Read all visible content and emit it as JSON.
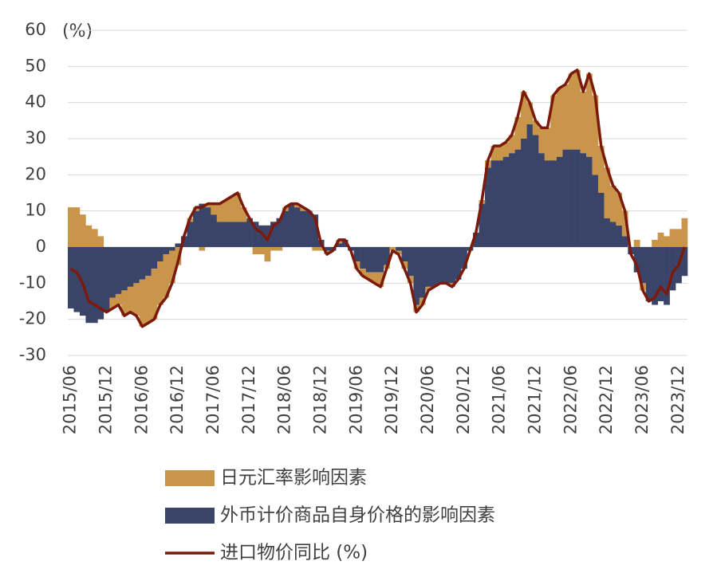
{
  "chart_data": {
    "type": "combo",
    "unit_label": "(%)",
    "categories": [
      "2015/06",
      null,
      null,
      null,
      null,
      null,
      "2015/12",
      null,
      null,
      null,
      null,
      null,
      "2016/06",
      null,
      null,
      null,
      null,
      null,
      "2016/12",
      null,
      null,
      null,
      null,
      null,
      "2017/06",
      null,
      null,
      null,
      null,
      null,
      "2017/12",
      null,
      null,
      null,
      null,
      null,
      "2018/06",
      null,
      null,
      null,
      null,
      null,
      "2018/12",
      null,
      null,
      null,
      null,
      null,
      "2019/06",
      null,
      null,
      null,
      null,
      null,
      "2019/12",
      null,
      null,
      null,
      null,
      null,
      "2020/06",
      null,
      null,
      null,
      null,
      null,
      "2020/12",
      null,
      null,
      null,
      null,
      null,
      "2021/06",
      null,
      null,
      null,
      null,
      null,
      "2021/12",
      null,
      null,
      null,
      null,
      null,
      "2022/06",
      null,
      null,
      null,
      null,
      null,
      "2022/12",
      null,
      null,
      null,
      null,
      null,
      "2023/06",
      null,
      null,
      null,
      null,
      null,
      "2023/12",
      null
    ],
    "series": [
      {
        "name": "日元汇率影响因素",
        "type": "bar",
        "color": "#c8954a",
        "values": [
          11,
          11,
          9,
          6,
          5,
          3,
          0,
          -3,
          -3,
          -7,
          -7,
          -9,
          -13,
          -13,
          -14,
          -12,
          -12,
          -9,
          -5,
          0,
          1,
          1,
          -1,
          1,
          3,
          5,
          6,
          7,
          8,
          4,
          0,
          -2,
          -2,
          -4,
          -1,
          -1,
          1,
          0,
          1,
          1,
          0,
          -1,
          -1,
          -1,
          0,
          1,
          0,
          0,
          -2,
          -2,
          -2,
          -3,
          -4,
          -1,
          -1,
          -1,
          -2,
          -2,
          -2,
          -2,
          -1,
          0,
          0,
          0,
          -1,
          0,
          0,
          0,
          0,
          1,
          2,
          4,
          4,
          4,
          5,
          9,
          13,
          6,
          4,
          7,
          9,
          18,
          19,
          18,
          21,
          22,
          17,
          23,
          22,
          13,
          14,
          10,
          9,
          7,
          0,
          2,
          -2,
          0,
          2,
          4,
          3,
          5,
          5,
          8
        ]
      },
      {
        "name": "外币计价商品自身价格的影响因素",
        "type": "bar",
        "color": "#3a4468",
        "values": [
          -17,
          -18,
          -19,
          -21,
          -21,
          -20,
          -18,
          -14,
          -13,
          -12,
          -11,
          -10,
          -9,
          -8,
          -6,
          -4,
          -2,
          -1,
          1,
          3,
          7,
          10,
          12,
          11,
          9,
          7,
          7,
          7,
          7,
          7,
          8,
          7,
          6,
          6,
          7,
          8,
          10,
          12,
          11,
          10,
          10,
          9,
          2,
          -1,
          -1,
          1,
          2,
          -1,
          -4,
          -6,
          -7,
          -7,
          -7,
          -5,
          0,
          -1,
          -4,
          -8,
          -16,
          -14,
          -11,
          -11,
          -10,
          -10,
          -10,
          -9,
          -6,
          -1,
          4,
          12,
          22,
          24,
          24,
          25,
          26,
          27,
          30,
          34,
          31,
          26,
          24,
          24,
          25,
          27,
          27,
          27,
          26,
          25,
          20,
          15,
          8,
          7,
          6,
          3,
          -2,
          -7,
          -10,
          -15,
          -16,
          -15,
          -16,
          -12,
          -10,
          -8
        ]
      },
      {
        "name": "进口物价同比 (%)",
        "type": "line",
        "color": "#7b1a0a",
        "values": [
          -6,
          -7,
          -10,
          -15,
          -16,
          -17,
          -18,
          -17,
          -16,
          -19,
          -18,
          -19,
          -22,
          -21,
          -20,
          -16,
          -14,
          -10,
          -4,
          3,
          8,
          11,
          11,
          12,
          12,
          12,
          13,
          14,
          15,
          11,
          8,
          5,
          4,
          2,
          6,
          7,
          11,
          12,
          12,
          11,
          10,
          8,
          1,
          -2,
          -1,
          2,
          2,
          -1,
          -6,
          -8,
          -9,
          -10,
          -11,
          -6,
          -1,
          -2,
          -6,
          -10,
          -18,
          -16,
          -12,
          -11,
          -10,
          -10,
          -11,
          -9,
          -6,
          -1,
          4,
          13,
          24,
          28,
          28,
          29,
          31,
          36,
          43,
          40,
          35,
          33,
          33,
          42,
          44,
          45,
          48,
          49,
          43,
          48,
          42,
          28,
          22,
          17,
          15,
          10,
          -2,
          -5,
          -12,
          -15,
          -14,
          -11,
          -13,
          -7,
          -5,
          0
        ]
      }
    ],
    "ylim": [
      -30,
      60
    ],
    "yticks": [
      60,
      50,
      40,
      30,
      20,
      10,
      0,
      -10,
      -20,
      -30
    ],
    "grid": true
  }
}
